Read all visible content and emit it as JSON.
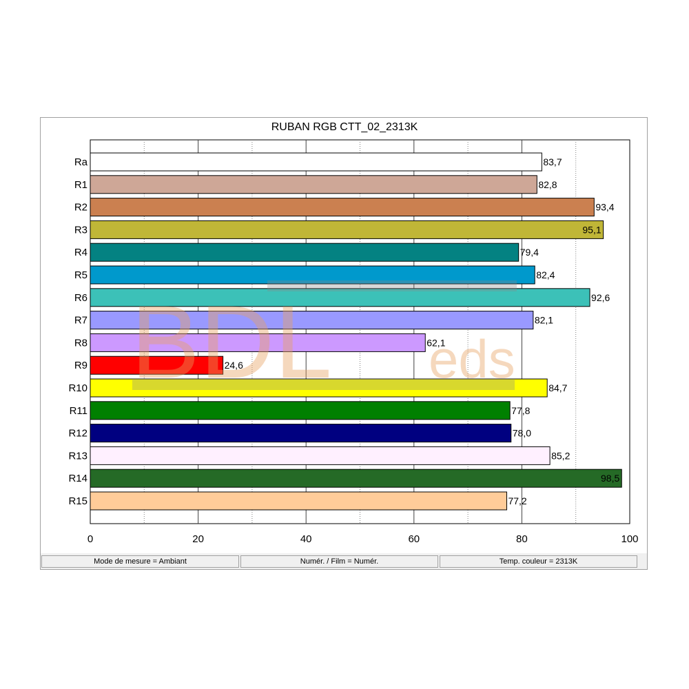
{
  "chart_data": {
    "type": "bar",
    "orientation": "horizontal",
    "title": "RUBAN RGB CTT_02_2313K",
    "categories": [
      "Ra",
      "R1",
      "R2",
      "R3",
      "R4",
      "R5",
      "R6",
      "R7",
      "R8",
      "R9",
      "R10",
      "R11",
      "R12",
      "R13",
      "R14",
      "R15"
    ],
    "values": [
      83.7,
      82.8,
      93.4,
      95.1,
      79.4,
      82.4,
      92.6,
      82.1,
      62.1,
      24.6,
      84.7,
      77.8,
      78.0,
      85.2,
      98.5,
      77.2
    ],
    "value_labels": [
      "83,7",
      "82,8",
      "93,4",
      "95,1",
      "79,4",
      "82,4",
      "92,6",
      "82,1",
      "62,1",
      "24,6",
      "84,7",
      "77,8",
      "78,0",
      "85,2",
      "98,5",
      "77,2"
    ],
    "colors": [
      "#ffffff",
      "#cea797",
      "#cb8050",
      "#c0b637",
      "#048282",
      "#0099cc",
      "#3cc1b8",
      "#9999ff",
      "#cc99ff",
      "#ff0000",
      "#ffff00",
      "#008000",
      "#000080",
      "#fff0ff",
      "#256a26",
      "#ffcc99"
    ],
    "inside_label": [
      false,
      false,
      false,
      true,
      false,
      false,
      false,
      false,
      false,
      false,
      false,
      false,
      false,
      false,
      true,
      false
    ],
    "xlim": [
      0,
      100
    ],
    "xticks": [
      "0",
      "20",
      "40",
      "60",
      "80",
      "100"
    ],
    "xtick_values": [
      0,
      20,
      40,
      60,
      80,
      100
    ],
    "grid": true,
    "xlabel": "",
    "ylabel": ""
  },
  "watermark": {
    "text_main": "BDL",
    "text_small": "eds"
  },
  "status_bar": {
    "measure_mode": "Mode de mesure = Ambiant",
    "film": "Numér. / Film = Numér.",
    "color_temp": "Temp. couleur = 2313K"
  }
}
